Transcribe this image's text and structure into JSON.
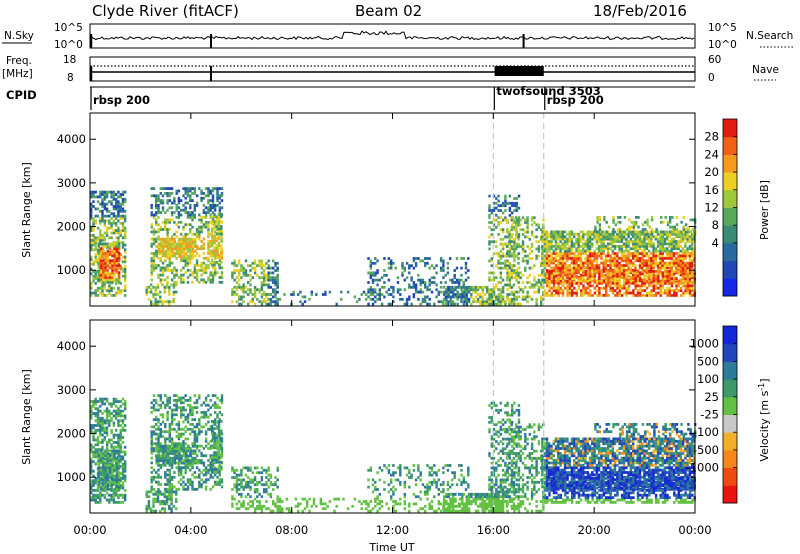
{
  "header": {
    "station": "Clyde River (fitACF)",
    "beam": "Beam 02",
    "date": "18/Feb/2016"
  },
  "top_panels": {
    "nsky_label": "N.Sky",
    "nsearch_label": "N.Search",
    "nsky_ticks": [
      "10^5",
      "10^0"
    ],
    "nsearch_ticks": [
      "10^5",
      "10^0"
    ],
    "freq_label_line1": "Freq.",
    "freq_label_line2": "[MHz]",
    "freq_ticks": [
      "18",
      "8"
    ],
    "nave_ticks": [
      "60",
      "0"
    ],
    "nave_label": "Nave",
    "cpid_label": "CPID",
    "cpid_segments": [
      {
        "name": "rbsp 200",
        "start_h": 0
      },
      {
        "name": "twofsound 3503",
        "start_h": 16
      },
      {
        "name": "rbsp 200",
        "start_h": 18
      }
    ]
  },
  "chart_data": [
    {
      "type": "heatmap",
      "name": "power",
      "ylabel": "Slant Range [km]",
      "xlabel": "Time UT",
      "ylim": [
        180,
        4600
      ],
      "xlim": [
        0,
        24
      ],
      "yticks": [
        1000,
        2000,
        3000,
        4000
      ],
      "xticks": [
        "00:00",
        "04:00",
        "08:00",
        "12:00",
        "16:00",
        "20:00",
        "00:00"
      ],
      "colorbar": {
        "label": "Power [dB]",
        "ticks": [
          "28",
          "24",
          "20",
          "16",
          "12",
          "8",
          "4"
        ],
        "colors": [
          "#1428e6",
          "#2048b4",
          "#2a6aa0",
          "#3b8a76",
          "#58a85a",
          "#9dc83c",
          "#eccf22",
          "#f59a1e",
          "#f06016",
          "#e01e10"
        ]
      }
    },
    {
      "type": "heatmap",
      "name": "velocity",
      "ylabel": "Slant Range [km]",
      "xlabel": "Time UT",
      "ylim": [
        180,
        4600
      ],
      "xlim": [
        0,
        24
      ],
      "yticks": [
        1000,
        2000,
        3000,
        4000
      ],
      "xticks": [
        "00:00",
        "04:00",
        "08:00",
        "12:00",
        "16:00",
        "20:00",
        "00:00"
      ],
      "colorbar": {
        "label": "Velocity [m s^-1]",
        "ticks": [
          "1000",
          "500",
          "100",
          "25",
          "-25",
          "-100",
          "-500",
          "-1000"
        ],
        "colors": [
          "#e81410",
          "#f04a14",
          "#f4861c",
          "#f2b02a",
          "#c8c8c8",
          "#62c042",
          "#3c9a6a",
          "#2e7a9a",
          "#2048b8",
          "#1428d6"
        ]
      }
    }
  ],
  "xaxis": {
    "label": "Time UT",
    "ticks": [
      "00:00",
      "04:00",
      "08:00",
      "12:00",
      "16:00",
      "20:00",
      "00:00"
    ]
  }
}
